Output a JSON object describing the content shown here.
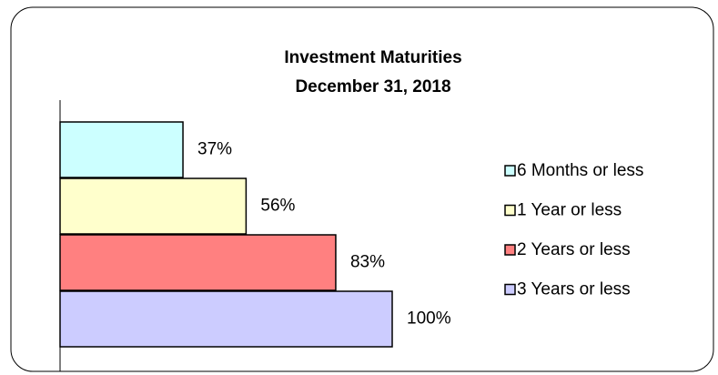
{
  "chart_data": {
    "type": "bar",
    "orientation": "horizontal",
    "title": "Investment Maturities",
    "subtitle": "December 31, 2018",
    "categories": [
      "6 Months or less",
      "1 Year or less",
      "2 Years or less",
      "3 Years or less"
    ],
    "values": [
      37,
      56,
      83,
      100
    ],
    "value_labels": [
      "37%",
      "56%",
      "83%",
      "100%"
    ],
    "colors": [
      "#ccffff",
      "#ffffcc",
      "#ff8080",
      "#ccccff"
    ],
    "xlim": [
      0,
      100
    ],
    "legend": "right"
  }
}
